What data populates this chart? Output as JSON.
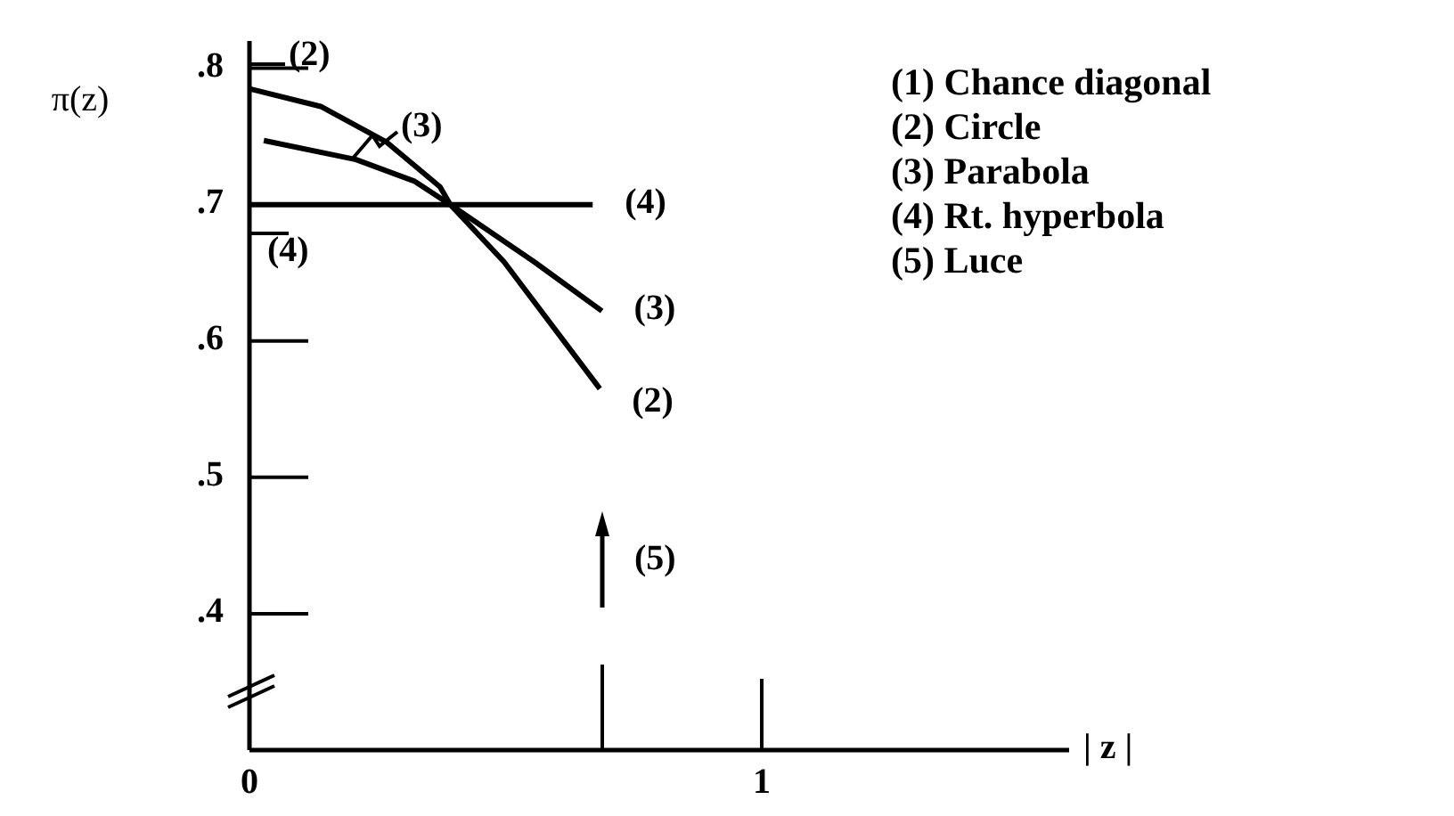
{
  "chart_data": {
    "type": "line",
    "ylabel": "π(z)",
    "xlabel": "| z |",
    "xlim": [
      0,
      1.6
    ],
    "xticks": [
      {
        "value": 0,
        "label": "0"
      },
      1
    ],
    "ylim": [
      0.3,
      0.82
    ],
    "yticks": [
      {
        "value": 0.4,
        "label": ".4"
      },
      {
        "value": 0.5,
        "label": ".5"
      },
      {
        "value": 0.6,
        "label": ".6"
      },
      {
        "value": 0.7,
        "label": ".7"
      },
      {
        "value": 0.8,
        "label": ".8"
      }
    ],
    "grid": false,
    "line_style": "solid",
    "series": [
      {
        "name": "(2)",
        "color": "#000000",
        "x": [
          0,
          0.139,
          0.267,
          0.372,
          0.392,
          0.497,
          0.684
        ],
        "values": [
          0.785,
          0.772,
          0.746,
          0.713,
          0.7,
          0.658,
          0.565
        ]
      },
      {
        "name": "(3)",
        "color": "#000000",
        "x": [
          0.028,
          0.208,
          0.323,
          0.392,
          0.556,
          0.688
        ],
        "values": [
          0.747,
          0.733,
          0.717,
          0.7,
          0.658,
          0.622
        ]
      },
      {
        "name": "(4)",
        "color": "#000000",
        "x": [
          0,
          0.392,
          0.67
        ],
        "values": [
          0.7,
          0.7,
          0.7
        ]
      }
    ],
    "annotations": [
      "(2)",
      "(3)",
      "(4)",
      "(5)",
      "(1)  Chance diagonal",
      "(2)  Circle",
      "(3)  Parabola",
      "(4)  Rt. hyperbola",
      "(5)  Luce"
    ]
  }
}
